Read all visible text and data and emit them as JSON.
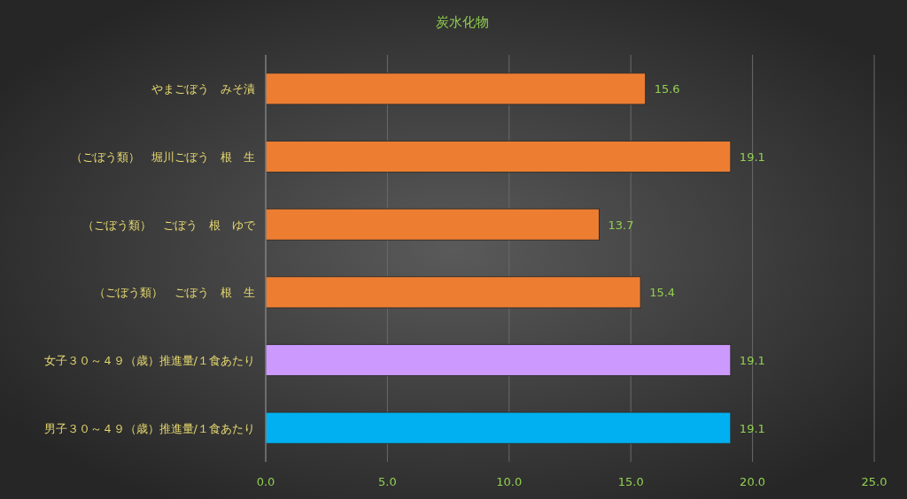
{
  "chart_data": {
    "type": "bar",
    "orientation": "horizontal",
    "title": "炭水化物",
    "categories": [
      "やまごぼう　みそ漬",
      "（ごぼう類）　堀川ごぼう　根　生",
      "（ごぼう類）　ごぼう　根　ゆで",
      "（ごぼう類）　ごぼう　根　生",
      "女子３０～４９（歳）推進量/１食あたり",
      "男子３０～４９（歳）推進量/１食あたり"
    ],
    "values": [
      15.6,
      19.1,
      13.7,
      15.4,
      19.1,
      19.1
    ],
    "colors": [
      "#ed7d31",
      "#ed7d31",
      "#ed7d31",
      "#ed7d31",
      "#cc99ff",
      "#00b0f0"
    ],
    "xlim": [
      0,
      25
    ],
    "xticks": [
      {
        "value": 0,
        "label": "0.0"
      },
      {
        "value": 5,
        "label": "5.0"
      },
      {
        "value": 10,
        "label": "10.0"
      },
      {
        "value": 15,
        "label": "15.0"
      },
      {
        "value": 20,
        "label": "20.0"
      },
      {
        "value": 25,
        "label": "25.0"
      }
    ],
    "grid": "x",
    "data_labels": true
  }
}
